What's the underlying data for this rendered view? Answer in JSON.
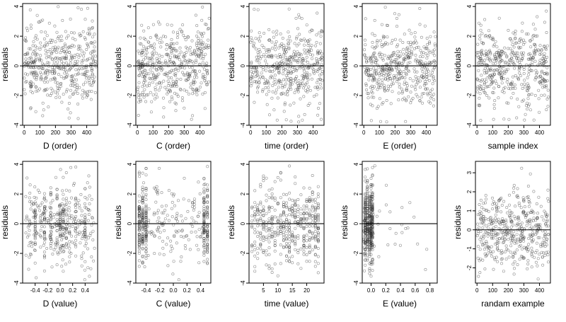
{
  "figure": {
    "type": "residual-diagnostics-grid"
  },
  "chart_data": [
    {
      "id": "d-order",
      "type": "scatter",
      "xlabel": "D (order)",
      "ylabel": "residuals",
      "xlim": [
        -10,
        470
      ],
      "ylim": [
        -4,
        4.2
      ],
      "xticks": [
        0,
        100,
        200,
        300,
        400
      ],
      "xtick_labels": [
        "0",
        "100",
        "200",
        "300",
        "400"
      ],
      "yticks": [
        -4,
        -2,
        0,
        2,
        4
      ],
      "ytick_labels": [
        "-4",
        "-2",
        "0",
        "2",
        "4"
      ],
      "hline": 0,
      "x_mode": "uniform",
      "x_range": [
        0,
        460
      ],
      "n_points": 460,
      "y_sd": 1.35,
      "seed": 11
    },
    {
      "id": "c-order",
      "type": "scatter",
      "xlabel": "C (order)",
      "ylabel": "residuals",
      "xlim": [
        -10,
        470
      ],
      "ylim": [
        -4,
        4.2
      ],
      "xticks": [
        0,
        100,
        200,
        300,
        400
      ],
      "xtick_labels": [
        "0",
        "100",
        "200",
        "300",
        "400"
      ],
      "yticks": [
        -4,
        -2,
        0,
        2,
        4
      ],
      "ytick_labels": [
        "-4",
        "-2",
        "0",
        "2",
        "4"
      ],
      "hline": 0,
      "x_mode": "uniform",
      "x_range": [
        0,
        460
      ],
      "n_points": 460,
      "y_sd": 1.35,
      "seed": 23
    },
    {
      "id": "time-order",
      "type": "scatter",
      "xlabel": "time (order)",
      "ylabel": "residuals",
      "xlim": [
        -10,
        470
      ],
      "ylim": [
        -4,
        4.2
      ],
      "xticks": [
        0,
        100,
        200,
        300,
        400
      ],
      "xtick_labels": [
        "0",
        "100",
        "200",
        "300",
        "400"
      ],
      "yticks": [
        -4,
        -2,
        0,
        2,
        4
      ],
      "ytick_labels": [
        "-4",
        "-2",
        "0",
        "2",
        "4"
      ],
      "hline": 0,
      "x_mode": "uniform",
      "x_range": [
        0,
        460
      ],
      "n_points": 460,
      "y_sd": 1.35,
      "seed": 37
    },
    {
      "id": "e-order",
      "type": "scatter",
      "xlabel": "E (order)",
      "ylabel": "residuals",
      "xlim": [
        -10,
        470
      ],
      "ylim": [
        -4,
        4.2
      ],
      "xticks": [
        0,
        100,
        200,
        300,
        400
      ],
      "xtick_labels": [
        "0",
        "100",
        "200",
        "300",
        "400"
      ],
      "yticks": [
        -4,
        -2,
        0,
        2,
        4
      ],
      "ytick_labels": [
        "-4",
        "-2",
        "0",
        "2",
        "4"
      ],
      "hline": 0,
      "x_mode": "uniform",
      "x_range": [
        0,
        460
      ],
      "n_points": 460,
      "y_sd": 1.35,
      "seed": 41
    },
    {
      "id": "sample-index",
      "type": "scatter",
      "xlabel": "sample index",
      "ylabel": "residuals",
      "xlim": [
        -10,
        470
      ],
      "ylim": [
        -4,
        4.2
      ],
      "xticks": [
        0,
        100,
        200,
        300,
        400
      ],
      "xtick_labels": [
        "0",
        "100",
        "200",
        "300",
        "400"
      ],
      "yticks": [
        -4,
        -2,
        0,
        2,
        4
      ],
      "ytick_labels": [
        "-4",
        "-2",
        "0",
        "2",
        "4"
      ],
      "hline": 0,
      "x_mode": "uniform",
      "x_range": [
        0,
        460
      ],
      "n_points": 460,
      "y_sd": 1.35,
      "seed": 53
    },
    {
      "id": "d-value",
      "type": "scatter",
      "xlabel": "D (value)",
      "ylabel": "residuals",
      "xlim": [
        -0.6,
        0.6
      ],
      "ylim": [
        -4,
        4.2
      ],
      "xticks": [
        -0.4,
        -0.2,
        0.0,
        0.2,
        0.4
      ],
      "xtick_labels": [
        "-0.4",
        "-0.2",
        "0.0",
        "0.2",
        "0.4"
      ],
      "yticks": [
        -4,
        -2,
        0,
        2,
        4
      ],
      "ytick_labels": [
        "-4",
        "-2",
        "0",
        "2",
        "4"
      ],
      "hline": 0,
      "x_mode": "mixed",
      "x_range": [
        -0.55,
        0.55
      ],
      "x_levels": [
        -0.4,
        -0.25,
        -0.15,
        -0.05,
        0.0,
        0.05,
        0.1,
        0.15,
        0.25,
        0.4
      ],
      "level_frac": 0.55,
      "n_points": 460,
      "y_sd": 1.35,
      "seed": 67
    },
    {
      "id": "c-value",
      "type": "scatter",
      "xlabel": "C (value)",
      "ylabel": "residuals",
      "xlim": [
        -0.55,
        0.55
      ],
      "ylim": [
        -4,
        4.2
      ],
      "xticks": [
        -0.4,
        -0.2,
        0.0,
        0.2,
        0.4
      ],
      "xtick_labels": [
        "-0.4",
        "-0.2",
        "0.0",
        "0.2",
        "0.4"
      ],
      "yticks": [
        -4,
        -2,
        0,
        2,
        4
      ],
      "ytick_labels": [
        "-4",
        "-2",
        "0",
        "2",
        "4"
      ],
      "hline": 0,
      "x_mode": "mixed",
      "x_range": [
        -0.5,
        0.5
      ],
      "x_levels": [
        -0.5,
        -0.45,
        -0.4,
        0.45,
        0.5
      ],
      "level_frac": 0.65,
      "n_points": 460,
      "y_sd": 1.35,
      "seed": 71
    },
    {
      "id": "time-value",
      "type": "scatter",
      "xlabel": "time (value)",
      "ylabel": "residuals",
      "xlim": [
        0,
        26
      ],
      "ylim": [
        -4,
        4.2
      ],
      "xticks": [
        5,
        10,
        15,
        20
      ],
      "xtick_labels": [
        "5",
        "10",
        "15",
        "20"
      ],
      "yticks": [
        -4,
        -2,
        0,
        2,
        4
      ],
      "ytick_labels": [
        "-4",
        "-2",
        "0",
        "2",
        "4"
      ],
      "hline": 0,
      "x_mode": "levels",
      "x_range": [
        1,
        25
      ],
      "x_levels": [
        1,
        2,
        3,
        4,
        5,
        6,
        7,
        8,
        9,
        10,
        11,
        12,
        13,
        14,
        15,
        16,
        17,
        18,
        19,
        20,
        21,
        22,
        23,
        24
      ],
      "level_frac": 1,
      "n_points": 460,
      "y_sd": 1.35,
      "seed": 83
    },
    {
      "id": "e-value",
      "type": "scatter",
      "xlabel": "E (value)",
      "ylabel": "residuals",
      "xlim": [
        -0.12,
        0.9
      ],
      "ylim": [
        -4,
        4.2
      ],
      "xticks": [
        0.0,
        0.2,
        0.4,
        0.6,
        0.8
      ],
      "xtick_labels": [
        "0.0",
        "0.2",
        "0.4",
        "0.6",
        "0.8"
      ],
      "yticks": [
        -4,
        -2,
        0,
        2,
        4
      ],
      "ytick_labels": [
        "-4",
        "-2",
        "0",
        "2",
        "4"
      ],
      "hline": 0,
      "x_mode": "skewed",
      "x_range": [
        -0.1,
        0.85
      ],
      "x_levels": [
        -0.08,
        -0.05,
        -0.02,
        0.0,
        0.02
      ],
      "level_frac": 0.9,
      "n_points": 460,
      "y_sd": 1.35,
      "seed": 97
    },
    {
      "id": "random-example",
      "type": "scatter",
      "xlabel": "randam example",
      "ylabel": "residuals",
      "xlim": [
        -10,
        470
      ],
      "ylim": [
        -2.8,
        3.6
      ],
      "xticks": [
        0,
        100,
        200,
        300,
        400
      ],
      "xtick_labels": [
        "0",
        "100",
        "200",
        "300",
        "400"
      ],
      "yticks": [
        -2,
        -1,
        0,
        1,
        2,
        3
      ],
      "ytick_labels": [
        "-2",
        "-1",
        "0",
        "1",
        "2",
        "3"
      ],
      "hline": 0,
      "x_mode": "uniform",
      "x_range": [
        0,
        460
      ],
      "n_points": 460,
      "y_sd": 1.0,
      "seed": 101
    }
  ]
}
